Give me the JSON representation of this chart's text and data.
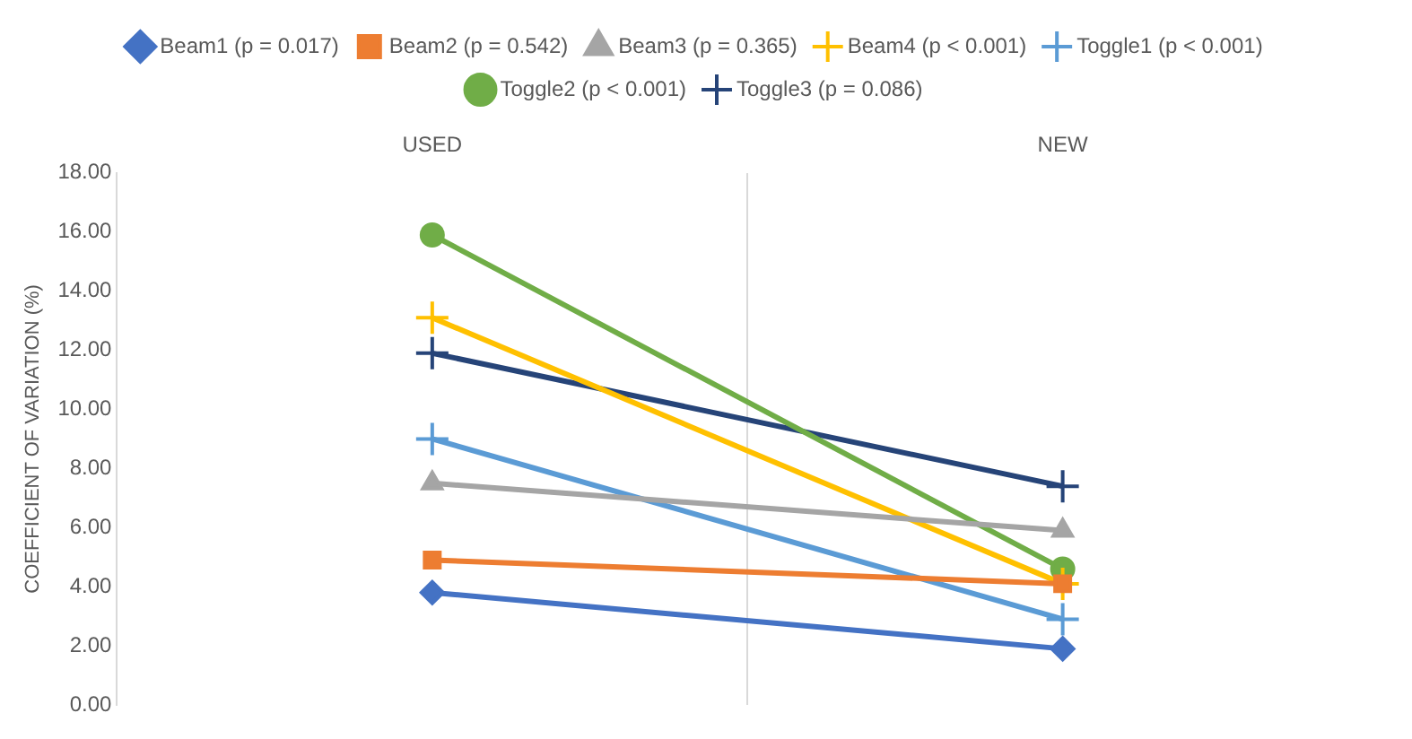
{
  "chart_data": {
    "type": "line",
    "ylabel": "COEFFICIENT OF VARIATION (%)",
    "categories": [
      "USED",
      "NEW"
    ],
    "series": [
      {
        "name": "Beam1 (p = 0.017)",
        "color": "#4472c4",
        "marker": "diamond",
        "values": [
          3.8,
          1.9
        ]
      },
      {
        "name": "Beam2 (p = 0.542)",
        "color": "#ed7d31",
        "marker": "square",
        "values": [
          4.9,
          4.1
        ]
      },
      {
        "name": "Beam3 (p = 0.365)",
        "color": "#a5a5a5",
        "marker": "triangle",
        "values": [
          7.5,
          5.9
        ]
      },
      {
        "name": "Beam4 (p < 0.001)",
        "color": "#ffc000",
        "marker": "cross",
        "values": [
          13.1,
          4.1
        ]
      },
      {
        "name": "Toggle1 (p < 0.001)",
        "color": "#5b9bd5",
        "marker": "cross",
        "values": [
          9.0,
          2.9
        ]
      },
      {
        "name": "Toggle2 (p < 0.001)",
        "color": "#70ad47",
        "marker": "circle",
        "values": [
          15.9,
          4.6
        ]
      },
      {
        "name": "Toggle3 (p = 0.086)",
        "color": "#264478",
        "marker": "cross",
        "values": [
          11.9,
          7.4
        ]
      }
    ],
    "ylim": [
      0,
      18
    ],
    "yticks": [
      {
        "value": 0,
        "label": "0.00"
      },
      {
        "value": 2,
        "label": "2.00"
      },
      {
        "value": 4,
        "label": "4.00"
      },
      {
        "value": 6,
        "label": "6.00"
      },
      {
        "value": 8,
        "label": "8.00"
      },
      {
        "value": 10,
        "label": "10.00"
      },
      {
        "value": 12,
        "label": "12.00"
      },
      {
        "value": 14,
        "label": "14.00"
      },
      {
        "value": 16,
        "label": "16.00"
      },
      {
        "value": 18,
        "label": "18.00"
      }
    ],
    "grid": "x",
    "legend": "top",
    "line_style": "solid"
  }
}
